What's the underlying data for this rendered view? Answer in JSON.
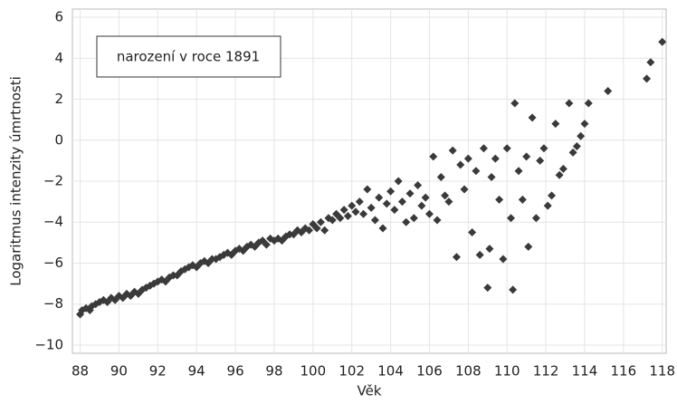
{
  "chart_data": {
    "type": "scatter",
    "x_label": "Věk",
    "y_label": "Logaritmus intenzity úmrtnosti",
    "annotation": "narození v roce 1891",
    "color": "#3a3a3a",
    "grid": true,
    "xlim": [
      87.6,
      118.2
    ],
    "ylim": [
      -10.4,
      6.4
    ],
    "xticks": [
      88,
      90,
      92,
      94,
      96,
      98,
      100,
      102,
      104,
      106,
      108,
      110,
      112,
      114,
      116,
      118
    ],
    "yticks": [
      {
        "value": -10,
        "label": "−10"
      },
      {
        "value": -8,
        "label": "−8"
      },
      {
        "value": -6,
        "label": "−6"
      },
      {
        "value": -4,
        "label": "−4"
      },
      {
        "value": -2,
        "label": "−2"
      },
      0,
      2,
      4,
      6
    ],
    "x": [
      88.0,
      88.1,
      88.3,
      88.5,
      88.6,
      88.8,
      89.0,
      89.2,
      89.4,
      89.6,
      89.8,
      90.0,
      90.2,
      90.4,
      90.6,
      90.8,
      91.0,
      91.2,
      91.4,
      91.6,
      91.8,
      92.0,
      92.2,
      92.4,
      92.6,
      92.8,
      93.0,
      93.2,
      93.4,
      93.6,
      93.8,
      94.0,
      94.2,
      94.4,
      94.6,
      94.8,
      95.0,
      95.2,
      95.4,
      95.6,
      95.8,
      96.0,
      96.2,
      96.4,
      96.6,
      96.8,
      97.0,
      97.2,
      97.4,
      97.6,
      97.8,
      98.0,
      98.2,
      98.4,
      98.6,
      98.8,
      99.0,
      99.2,
      99.4,
      99.6,
      99.8,
      100.0,
      100.2,
      100.4,
      100.6,
      100.8,
      101.0,
      101.2,
      101.4,
      101.6,
      101.8,
      102.0,
      102.2,
      102.4,
      102.6,
      102.8,
      103.0,
      103.2,
      103.4,
      103.6,
      103.8,
      104.0,
      104.2,
      104.4,
      104.6,
      104.8,
      105.0,
      105.2,
      105.4,
      105.6,
      105.8,
      106.0,
      106.2,
      106.4,
      106.6,
      106.8,
      107.0,
      107.2,
      107.4,
      107.6,
      107.8,
      108.0,
      108.2,
      108.4,
      108.6,
      108.8,
      109.0,
      109.1,
      109.2,
      109.4,
      109.6,
      109.8,
      110.0,
      110.2,
      110.3,
      110.4,
      110.6,
      110.8,
      111.0,
      111.1,
      111.3,
      111.5,
      111.7,
      111.9,
      112.1,
      112.3,
      112.5,
      112.7,
      112.9,
      113.2,
      113.4,
      113.6,
      113.8,
      114.0,
      114.2,
      115.2,
      117.2,
      117.4,
      118.0
    ],
    "y": [
      -8.5,
      -8.3,
      -8.2,
      -8.3,
      -8.1,
      -8.0,
      -7.9,
      -7.8,
      -7.9,
      -7.7,
      -7.8,
      -7.6,
      -7.7,
      -7.5,
      -7.6,
      -7.4,
      -7.5,
      -7.3,
      -7.2,
      -7.1,
      -7.0,
      -6.9,
      -6.8,
      -6.9,
      -6.7,
      -6.6,
      -6.6,
      -6.4,
      -6.3,
      -6.2,
      -6.1,
      -6.2,
      -6.0,
      -5.9,
      -6.0,
      -5.8,
      -5.8,
      -5.7,
      -5.6,
      -5.5,
      -5.6,
      -5.4,
      -5.3,
      -5.4,
      -5.2,
      -5.1,
      -5.2,
      -5.0,
      -4.9,
      -5.1,
      -4.8,
      -4.9,
      -4.8,
      -4.9,
      -4.7,
      -4.6,
      -4.6,
      -4.4,
      -4.5,
      -4.3,
      -4.4,
      -4.1,
      -4.3,
      -4.0,
      -4.4,
      -3.8,
      -3.9,
      -3.6,
      -3.8,
      -3.4,
      -3.7,
      -3.2,
      -3.5,
      -3.0,
      -3.6,
      -2.4,
      -3.3,
      -3.9,
      -2.8,
      -4.3,
      -3.1,
      -2.5,
      -3.4,
      -2.0,
      -3.0,
      -4.0,
      -2.6,
      -3.8,
      -2.2,
      -3.2,
      -2.8,
      -3.6,
      -0.8,
      -3.9,
      -1.8,
      -2.7,
      -3.0,
      -0.5,
      -5.7,
      -1.2,
      -2.4,
      -0.9,
      -4.5,
      -1.5,
      -5.6,
      -0.4,
      -7.2,
      -5.3,
      -1.8,
      -0.9,
      -2.9,
      -5.8,
      -0.4,
      -3.8,
      -7.3,
      1.8,
      -1.5,
      -2.9,
      -0.8,
      -5.2,
      1.1,
      -3.8,
      -1.0,
      -0.4,
      -3.2,
      -2.7,
      0.8,
      -1.7,
      -1.4,
      1.8,
      -0.6,
      -0.3,
      0.2,
      0.8,
      1.8,
      2.4,
      3.0,
      3.8,
      4.8
    ]
  }
}
